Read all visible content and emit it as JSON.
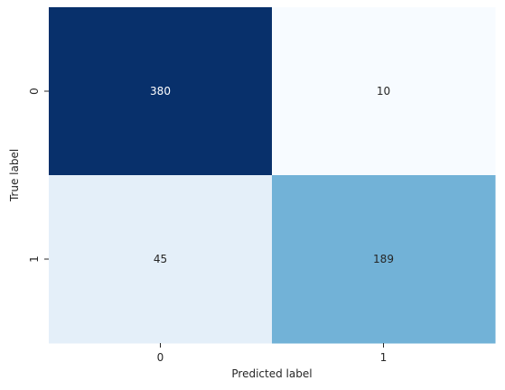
{
  "chart_data": {
    "type": "heatmap",
    "title": "",
    "xlabel": "Predicted label",
    "ylabel": "True label",
    "x_categories": [
      "0",
      "1"
    ],
    "y_categories": [
      "0",
      "1"
    ],
    "values": [
      [
        380,
        10
      ],
      [
        45,
        189
      ]
    ],
    "colormap": "Blues",
    "color_range": [
      10,
      380
    ],
    "colorbar": false,
    "annotate": true
  }
}
